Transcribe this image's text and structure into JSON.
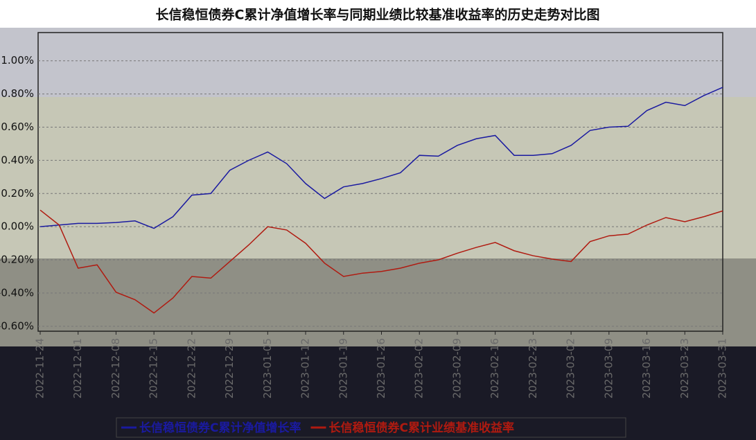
{
  "chart_data": {
    "type": "line",
    "title": "长信稳恒债券C累计净值增长率与同期业绩比较基准收益率的历史走势对比图",
    "categories": [
      "2022-11-24",
      null,
      "2022-12-01",
      null,
      "2022-12-08",
      null,
      "2022-12-15",
      null,
      "2022-12-22",
      null,
      "2022-12-29",
      null,
      "2023-01-05",
      null,
      "2023-01-12",
      null,
      "2023-01-19",
      null,
      "2023-01-26",
      null,
      "2023-02-02",
      null,
      "2023-02-09",
      null,
      "2023-02-16",
      null,
      "2023-02-23",
      null,
      "2023-03-02",
      null,
      "2023-03-09",
      null,
      "2023-03-16",
      null,
      "2023-03-23",
      null,
      "2023-03-31"
    ],
    "series": [
      {
        "name": "长信稳恒债券C累计净值增长率",
        "color": "#1a1aa0",
        "values": [
          0,
          0.01,
          0.02,
          0.02,
          0.025,
          0.035,
          -0.01,
          0.06,
          0.19,
          0.2,
          0.34,
          0.4,
          0.45,
          0.38,
          0.26,
          0.17,
          0.24,
          0.26,
          0.29,
          0.325,
          0.43,
          0.425,
          0.49,
          0.53,
          0.55,
          0.43,
          0.43,
          0.44,
          0.49,
          0.58,
          0.6,
          0.605,
          0.7,
          0.75,
          0.73,
          0.79,
          0.84
        ]
      },
      {
        "name": "长信稳恒债券C累计业绩基准收益率",
        "color": "#b01a10",
        "values": [
          0.1,
          0.01,
          -0.25,
          -0.23,
          -0.395,
          -0.44,
          -0.52,
          -0.43,
          -0.3,
          -0.31,
          -0.21,
          -0.11,
          0,
          -0.02,
          -0.1,
          -0.22,
          -0.3,
          -0.28,
          -0.27,
          -0.25,
          -0.22,
          -0.2,
          -0.16,
          -0.125,
          -0.095,
          -0.145,
          -0.175,
          -0.195,
          -0.21,
          -0.09,
          -0.055,
          -0.045,
          0.01,
          0.055,
          0.03,
          0.06,
          0.095
        ]
      }
    ],
    "ylim": [
      -0.63,
      1.17
    ],
    "yticks": [
      {
        "value": 1.0,
        "label": "1.00%"
      },
      {
        "value": 0.8,
        "label": "0.80%"
      },
      {
        "value": 0.6,
        "label": "0.60%"
      },
      {
        "value": 0.4,
        "label": "0.40%"
      },
      {
        "value": 0.2,
        "label": "0.20%"
      },
      {
        "value": 0,
        "label": "0.00%"
      },
      {
        "value": -0.2,
        "label": "-0.20%"
      },
      {
        "value": -0.4,
        "label": "-0.40%"
      },
      {
        "value": -0.6,
        "label": "-0.60%"
      }
    ],
    "grid": true,
    "legend": "bottom"
  }
}
